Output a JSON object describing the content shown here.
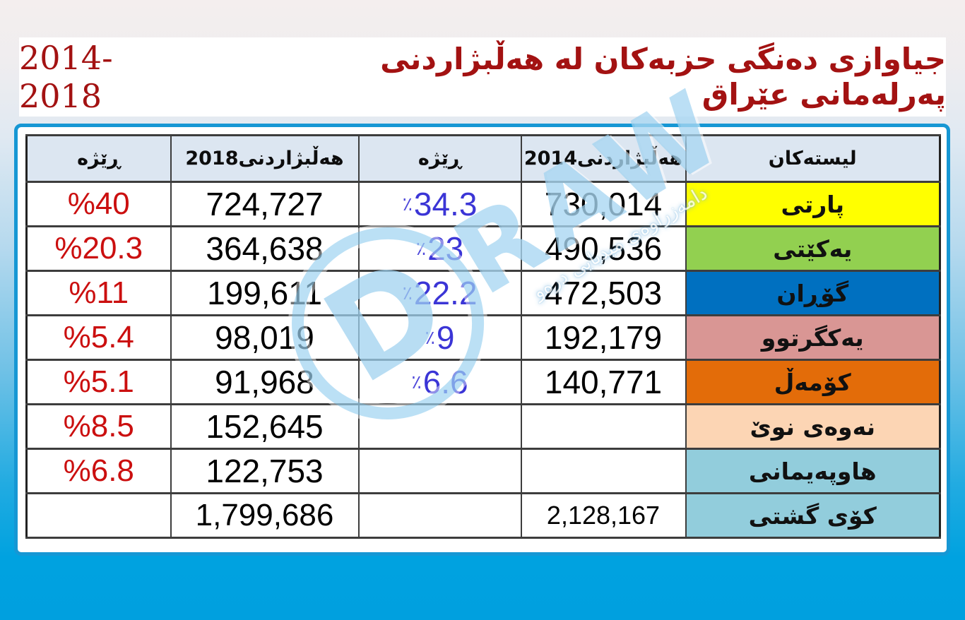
{
  "title": {
    "kurdish": "جیاوازی دەنگی حزبەکان لە هەڵبژاردنی پەرلەمانی عێراق",
    "years": "2014-2018"
  },
  "table": {
    "headers": {
      "lists": "لیستەکان",
      "votes2014": "هەڵبژاردنی2014",
      "pct2014": "ڕێژە",
      "votes2018": "هەڵبژاردنی2018",
      "pct2018": "ڕێژە"
    },
    "rows": [
      {
        "name": "پارتی",
        "color": "#ffff00",
        "votes2014": "730,014",
        "pct2014": "٪34.3",
        "votes2018": "724,727",
        "pct2018": "%40"
      },
      {
        "name": "یەکێتی",
        "color": "#92d050",
        "votes2014": "490,536",
        "pct2014": "٪23",
        "votes2018": "364,638",
        "pct2018": "%20.3"
      },
      {
        "name": "گۆڕان",
        "color": "#0070c0",
        "votes2014": "472,503",
        "pct2014": "٪22.2",
        "votes2018": "199,611",
        "pct2018": "%11"
      },
      {
        "name": "یەکگرتوو",
        "color": "#d99694",
        "votes2014": "192,179",
        "pct2014": "٪9",
        "votes2018": "98,019",
        "pct2018": "%5.4"
      },
      {
        "name": "کۆمەڵ",
        "color": "#e36c09",
        "votes2014": "140,771",
        "pct2014": "٪6.6",
        "votes2018": "91,968",
        "pct2018": "%5.1"
      },
      {
        "name": "نەوەی نوێ",
        "color": "#fcd5b4",
        "votes2014": "",
        "pct2014": "",
        "votes2018": "152,645",
        "pct2018": "%8.5"
      },
      {
        "name": "هاوپەیمانی",
        "color": "#92cddc",
        "votes2014": "",
        "pct2014": "",
        "votes2018": "122,753",
        "pct2018": "%6.8"
      },
      {
        "name": "کۆی گشتی",
        "color": "#92cddc",
        "votes2014": "2,128,167",
        "pct2014": "",
        "votes2018": "1,799,686",
        "pct2018": ""
      }
    ]
  },
  "watermark": {
    "logo_letter": "D",
    "logo_text": "RAW",
    "subtext": "دامەزراوەی میدیایی درەو"
  },
  "colors": {
    "title_red": "#a31212",
    "pct2018_red": "#cb0f0f",
    "pct2014_blue": "#3b35d6",
    "header_bg": "#dce6f1",
    "panel_border": "#1697d4",
    "background_bottom": "#00a0df",
    "background_top": "#f4eeee"
  },
  "chart_data": {
    "type": "table",
    "title": "جیاوازی دەنگی حزبەکان لە هەڵبژاردنی پەرلەمانی عێراق 2014-2018",
    "columns": [
      "لیستەکان",
      "هەڵبژاردنی 2014",
      "ڕێژە 2014",
      "هەڵبژاردنی 2018",
      "ڕێژە 2018"
    ],
    "rows": [
      [
        "پارتی",
        730014,
        "34.3%",
        724727,
        "40%"
      ],
      [
        "یەکێتی",
        490536,
        "23%",
        364638,
        "20.3%"
      ],
      [
        "گۆڕان",
        472503,
        "22.2%",
        199611,
        "11%"
      ],
      [
        "یەکگرتوو",
        192179,
        "9%",
        98019,
        "5.4%"
      ],
      [
        "کۆمەڵ",
        140771,
        "6.6%",
        91968,
        "5.1%"
      ],
      [
        "نەوەی نوێ",
        null,
        null,
        152645,
        "8.5%"
      ],
      [
        "هاوپەیمانی",
        null,
        null,
        122753,
        "6.8%"
      ],
      [
        "کۆی گشتی",
        2128167,
        null,
        1799686,
        null
      ]
    ],
    "row_colors": [
      "#ffff00",
      "#92d050",
      "#0070c0",
      "#d99694",
      "#e36c09",
      "#fcd5b4",
      "#92cddc",
      "#92cddc"
    ]
  }
}
